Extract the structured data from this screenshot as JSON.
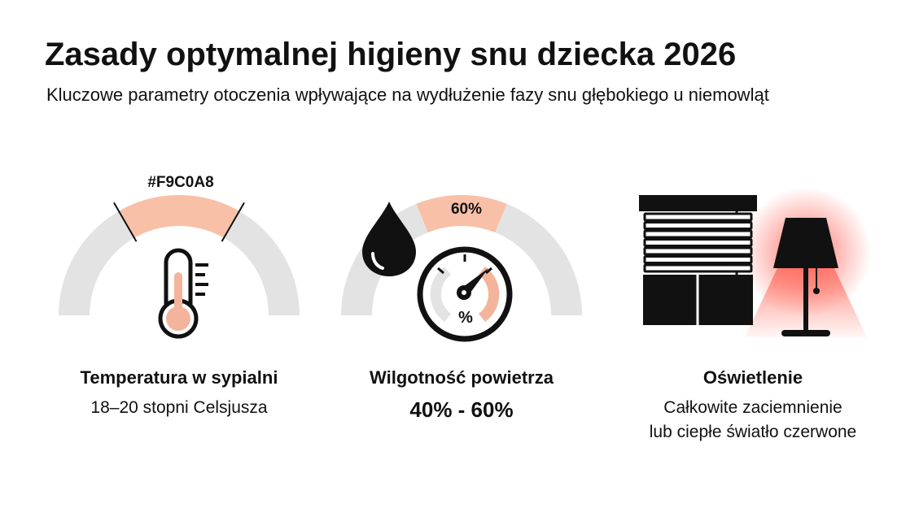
{
  "header": {
    "title": "Zasady optymalnej higieny snu dziecka 2026",
    "subtitle": "Kluczowe parametry otoczenia wpływające na wydłużenie fazy snu głębokiego u niemowląt"
  },
  "cards": [
    {
      "gauge_label": "#F9C0A8",
      "heading": "Temperatura w sypialni",
      "description": [
        "18–20 stopni Celsjusza"
      ]
    },
    {
      "gauge_label": "60%",
      "dial_label": "%",
      "heading": "Wilgotność powietrza",
      "description": [
        "40% - 60%"
      ]
    },
    {
      "heading": "Oświetlenie",
      "description": [
        "Całkowite zaciemnienie",
        "lub ciepłe światło czerwone"
      ]
    }
  ]
}
